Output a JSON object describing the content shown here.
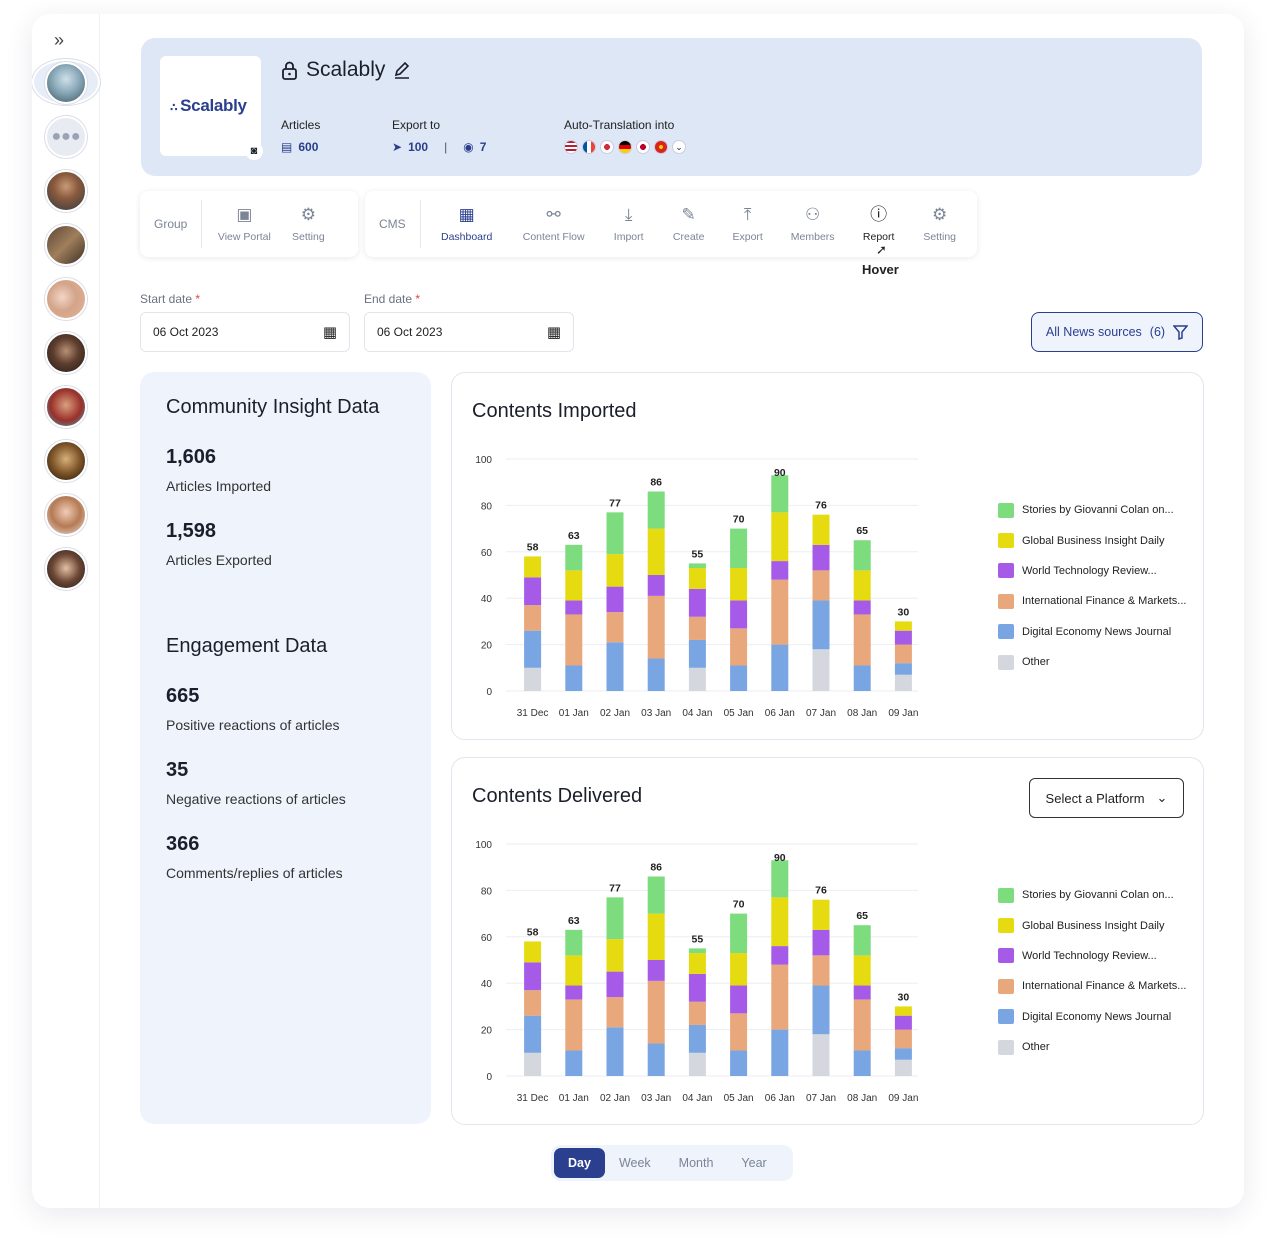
{
  "header": {
    "title": "Scalably",
    "logo_text": "Scalably",
    "articles_label": "Articles",
    "articles_value": "600",
    "export_label": "Export to",
    "export_telegram": "100",
    "export_separator": "|",
    "export_discord": "7",
    "translation_label": "Auto-Translation into"
  },
  "toolbar": {
    "group_label": "Group",
    "group_items": [
      {
        "label": "View Portal",
        "icon": "portal-icon"
      },
      {
        "label": "Setting",
        "icon": "gear-icon"
      }
    ],
    "cms_label": "CMS",
    "cms_items": [
      {
        "label": "Dashboard",
        "icon": "dashboard-icon"
      },
      {
        "label": "Content Flow",
        "icon": "flow-icon"
      },
      {
        "label": "Import",
        "icon": "import-icon"
      },
      {
        "label": "Create",
        "icon": "create-icon"
      },
      {
        "label": "Export",
        "icon": "export-icon"
      },
      {
        "label": "Members",
        "icon": "members-icon"
      },
      {
        "label": "Report",
        "icon": "report-icon"
      },
      {
        "label": "Setting",
        "icon": "gear-icon"
      }
    ],
    "hover_note": "Hover"
  },
  "filters": {
    "start_label": "Start date",
    "start_value": "06 Oct 2023",
    "end_label": "End date",
    "end_value": "06 Oct 2023",
    "required_mark": "*",
    "sources_label": "All News sources",
    "sources_count": "(6)"
  },
  "insight": {
    "community_title": "Community Insight Data",
    "imported_value": "1,606",
    "imported_label": "Articles Imported",
    "exported_value": "1,598",
    "exported_label": "Articles Exported",
    "engagement_title": "Engagement Data",
    "positive_value": "665",
    "positive_label": "Positive reactions of articles",
    "negative_value": "35",
    "negative_label": "Negative reactions of articles",
    "comments_value": "366",
    "comments_label": "Comments/replies of articles"
  },
  "platform_select": "Select a Platform",
  "period": {
    "options": [
      "Day",
      "Week",
      "Month",
      "Year"
    ],
    "selected": "Day"
  },
  "colors": {
    "green": "#7cdc7e",
    "yellow": "#e6db10",
    "purple": "#a65be8",
    "orange": "#e9a77c",
    "blue": "#79a6e2",
    "gray": "#d4d7dd",
    "accent": "#2b3f8f"
  },
  "chart_data": [
    {
      "type": "bar",
      "title": "Contents Imported",
      "ylim": [
        0,
        100
      ],
      "yticks": [
        0,
        20,
        40,
        60,
        80,
        100
      ],
      "categories": [
        "31 Dec",
        "01 Jan",
        "02 Jan",
        "03 Jan",
        "04 Jan",
        "05 Jan",
        "06 Jan",
        "07 Jan",
        "08 Jan",
        "09 Jan"
      ],
      "totals": [
        58,
        63,
        77,
        86,
        55,
        70,
        90,
        76,
        65,
        30
      ],
      "series": [
        {
          "name": "Other",
          "values": [
            10,
            0,
            0,
            0,
            10,
            0,
            0,
            18,
            0,
            7
          ]
        },
        {
          "name": "Digital Economy News Journal",
          "values": [
            16,
            11,
            21,
            14,
            12,
            11,
            20,
            21,
            11,
            5
          ]
        },
        {
          "name": "International Finance & Markets...",
          "values": [
            11,
            22,
            13,
            27,
            10,
            16,
            28,
            13,
            22,
            8
          ]
        },
        {
          "name": "World Technology Review...",
          "values": [
            12,
            6,
            11,
            9,
            12,
            12,
            8,
            11,
            6,
            6
          ]
        },
        {
          "name": "Global Business Insight Daily",
          "values": [
            9,
            13,
            14,
            20,
            9,
            14,
            21,
            13,
            13,
            4
          ]
        },
        {
          "name": "Stories by Giovanni Colan on...",
          "values": [
            0,
            11,
            18,
            16,
            2,
            17,
            16,
            0,
            13,
            0
          ]
        }
      ]
    },
    {
      "type": "bar",
      "title": "Contents Delivered",
      "ylim": [
        0,
        100
      ],
      "yticks": [
        0,
        20,
        40,
        60,
        80,
        100
      ],
      "categories": [
        "31 Dec",
        "01 Jan",
        "02 Jan",
        "03 Jan",
        "04 Jan",
        "05 Jan",
        "06 Jan",
        "07 Jan",
        "08 Jan",
        "09 Jan"
      ],
      "totals": [
        58,
        63,
        77,
        86,
        55,
        70,
        90,
        76,
        65,
        30
      ],
      "series": [
        {
          "name": "Other",
          "values": [
            10,
            0,
            0,
            0,
            10,
            0,
            0,
            18,
            0,
            7
          ]
        },
        {
          "name": "Digital Economy News Journal",
          "values": [
            16,
            11,
            21,
            14,
            12,
            11,
            20,
            21,
            11,
            5
          ]
        },
        {
          "name": "International Finance & Markets...",
          "values": [
            11,
            22,
            13,
            27,
            10,
            16,
            28,
            13,
            22,
            8
          ]
        },
        {
          "name": "World Technology Review...",
          "values": [
            12,
            6,
            11,
            9,
            12,
            12,
            8,
            11,
            6,
            6
          ]
        },
        {
          "name": "Global Business Insight Daily",
          "values": [
            9,
            13,
            14,
            20,
            9,
            14,
            21,
            13,
            13,
            4
          ]
        },
        {
          "name": "Stories by Giovanni Colan on...",
          "values": [
            0,
            11,
            18,
            16,
            2,
            17,
            16,
            0,
            13,
            0
          ]
        }
      ]
    }
  ]
}
